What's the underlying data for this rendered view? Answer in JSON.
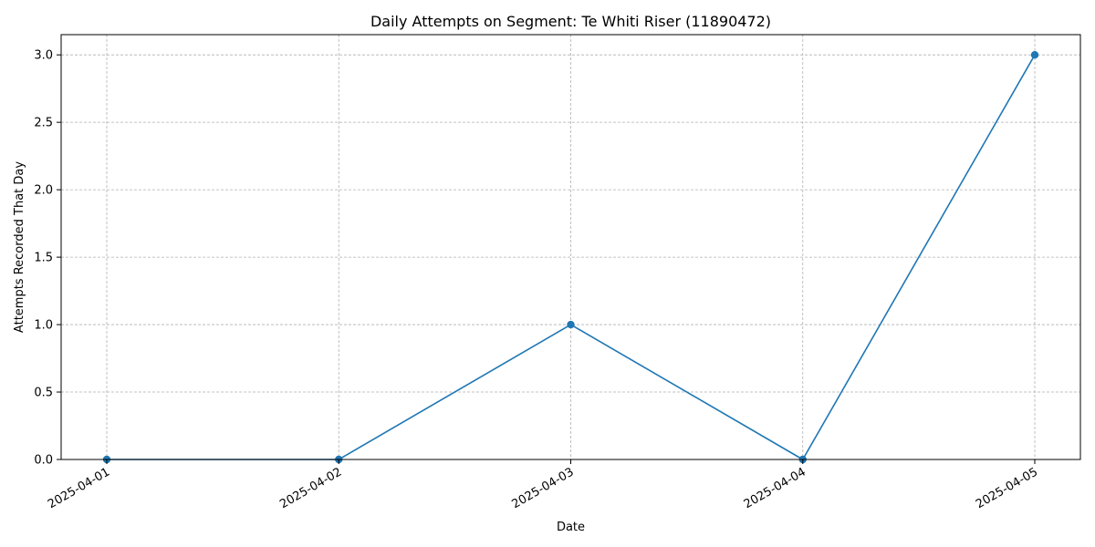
{
  "chart_data": {
    "type": "line",
    "title": "Daily Attempts on Segment: Te Whiti Riser (11890472)",
    "xlabel": "Date",
    "ylabel": "Attempts Recorded That Day",
    "x": [
      "2025-04-01",
      "2025-04-02",
      "2025-04-03",
      "2025-04-04",
      "2025-04-05"
    ],
    "series": [
      {
        "values": [
          0,
          0,
          1,
          0,
          3
        ],
        "color": "#1f77b4",
        "marker": "circle"
      }
    ],
    "yticks": [
      "0.0",
      "0.5",
      "1.0",
      "1.5",
      "2.0",
      "2.5",
      "3.0"
    ],
    "ylim": [
      0,
      3.15
    ],
    "grid": true,
    "legend": "none"
  }
}
